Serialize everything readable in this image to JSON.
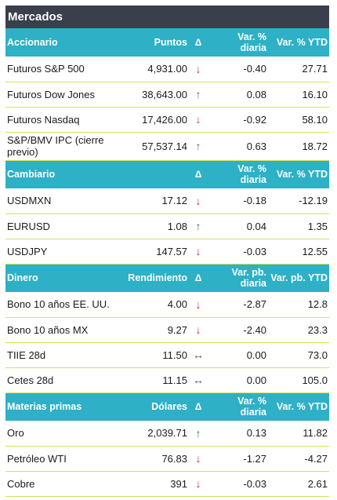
{
  "title": "Mercados",
  "sections": [
    {
      "headers": [
        "Accionario",
        "Puntos",
        "Δ",
        "Var. % diaria",
        "Var. % YTD"
      ],
      "rows": [
        {
          "name": "Futuros S&P 500",
          "value": "4,931.00",
          "dir": "down",
          "daily": "-0.40",
          "ytd": "27.71"
        },
        {
          "name": "Futuros Dow Jones",
          "value": "38,643.00",
          "dir": "up",
          "daily": "0.08",
          "ytd": "16.10"
        },
        {
          "name": "Futuros Nasdaq",
          "value": "17,426.00",
          "dir": "down",
          "daily": "-0.92",
          "ytd": "58.10"
        },
        {
          "name": "S&P/BMV IPC (cierre previo)",
          "value": "57,537.14",
          "dir": "up",
          "daily": "0.63",
          "ytd": "18.72"
        }
      ]
    },
    {
      "headers": [
        "Cambiario",
        "",
        "Δ",
        "Var. % diaria",
        "Var. % YTD"
      ],
      "rows": [
        {
          "name": "USDMXN",
          "value": "17.12",
          "dir": "down",
          "daily": "-0.18",
          "ytd": "-12.19"
        },
        {
          "name": "EURUSD",
          "value": "1.08",
          "dir": "up",
          "daily": "0.04",
          "ytd": "1.35"
        },
        {
          "name": "USDJPY",
          "value": "147.57",
          "dir": "down",
          "daily": "-0.03",
          "ytd": "12.55"
        }
      ]
    },
    {
      "headers": [
        "Dinero",
        "Rendimiento",
        "Δ",
        "Var. pb. diaria",
        "Var. pb. YTD"
      ],
      "rows": [
        {
          "name": "Bono 10 años EE. UU.",
          "value": "4.00",
          "dir": "down",
          "daily": "-2.87",
          "ytd": "12.8"
        },
        {
          "name": "Bono 10 años MX",
          "value": "9.27",
          "dir": "down",
          "daily": "-2.40",
          "ytd": "23.3"
        },
        {
          "name": "TIIE 28d",
          "value": "11.50",
          "dir": "flat",
          "daily": "0.00",
          "ytd": "73.0"
        },
        {
          "name": "Cetes 28d",
          "value": "11.15",
          "dir": "flat",
          "daily": "0.00",
          "ytd": "105.0"
        }
      ]
    },
    {
      "headers": [
        "Materias primas",
        "Dólares",
        "Δ",
        "Var. % diaria",
        "Var. % YTD"
      ],
      "rows": [
        {
          "name": "Oro",
          "value": "2,039.71",
          "dir": "up",
          "daily": "0.13",
          "ytd": "11.82"
        },
        {
          "name": "Petróleo WTI",
          "value": "76.83",
          "dir": "down",
          "daily": "-1.27",
          "ytd": "-4.27"
        },
        {
          "name": "Cobre",
          "value": "391",
          "dir": "down",
          "daily": "-0.03",
          "ytd": "2.61"
        }
      ]
    }
  ],
  "arrows": {
    "up": "↑",
    "down": "↓",
    "flat": "↔"
  },
  "colors": {
    "title_bg": "#3a3f4b",
    "header_bg": "#2eb0c6",
    "row_border": "#d4e157",
    "up": "#2e7d32",
    "down": "#d32f2f"
  }
}
